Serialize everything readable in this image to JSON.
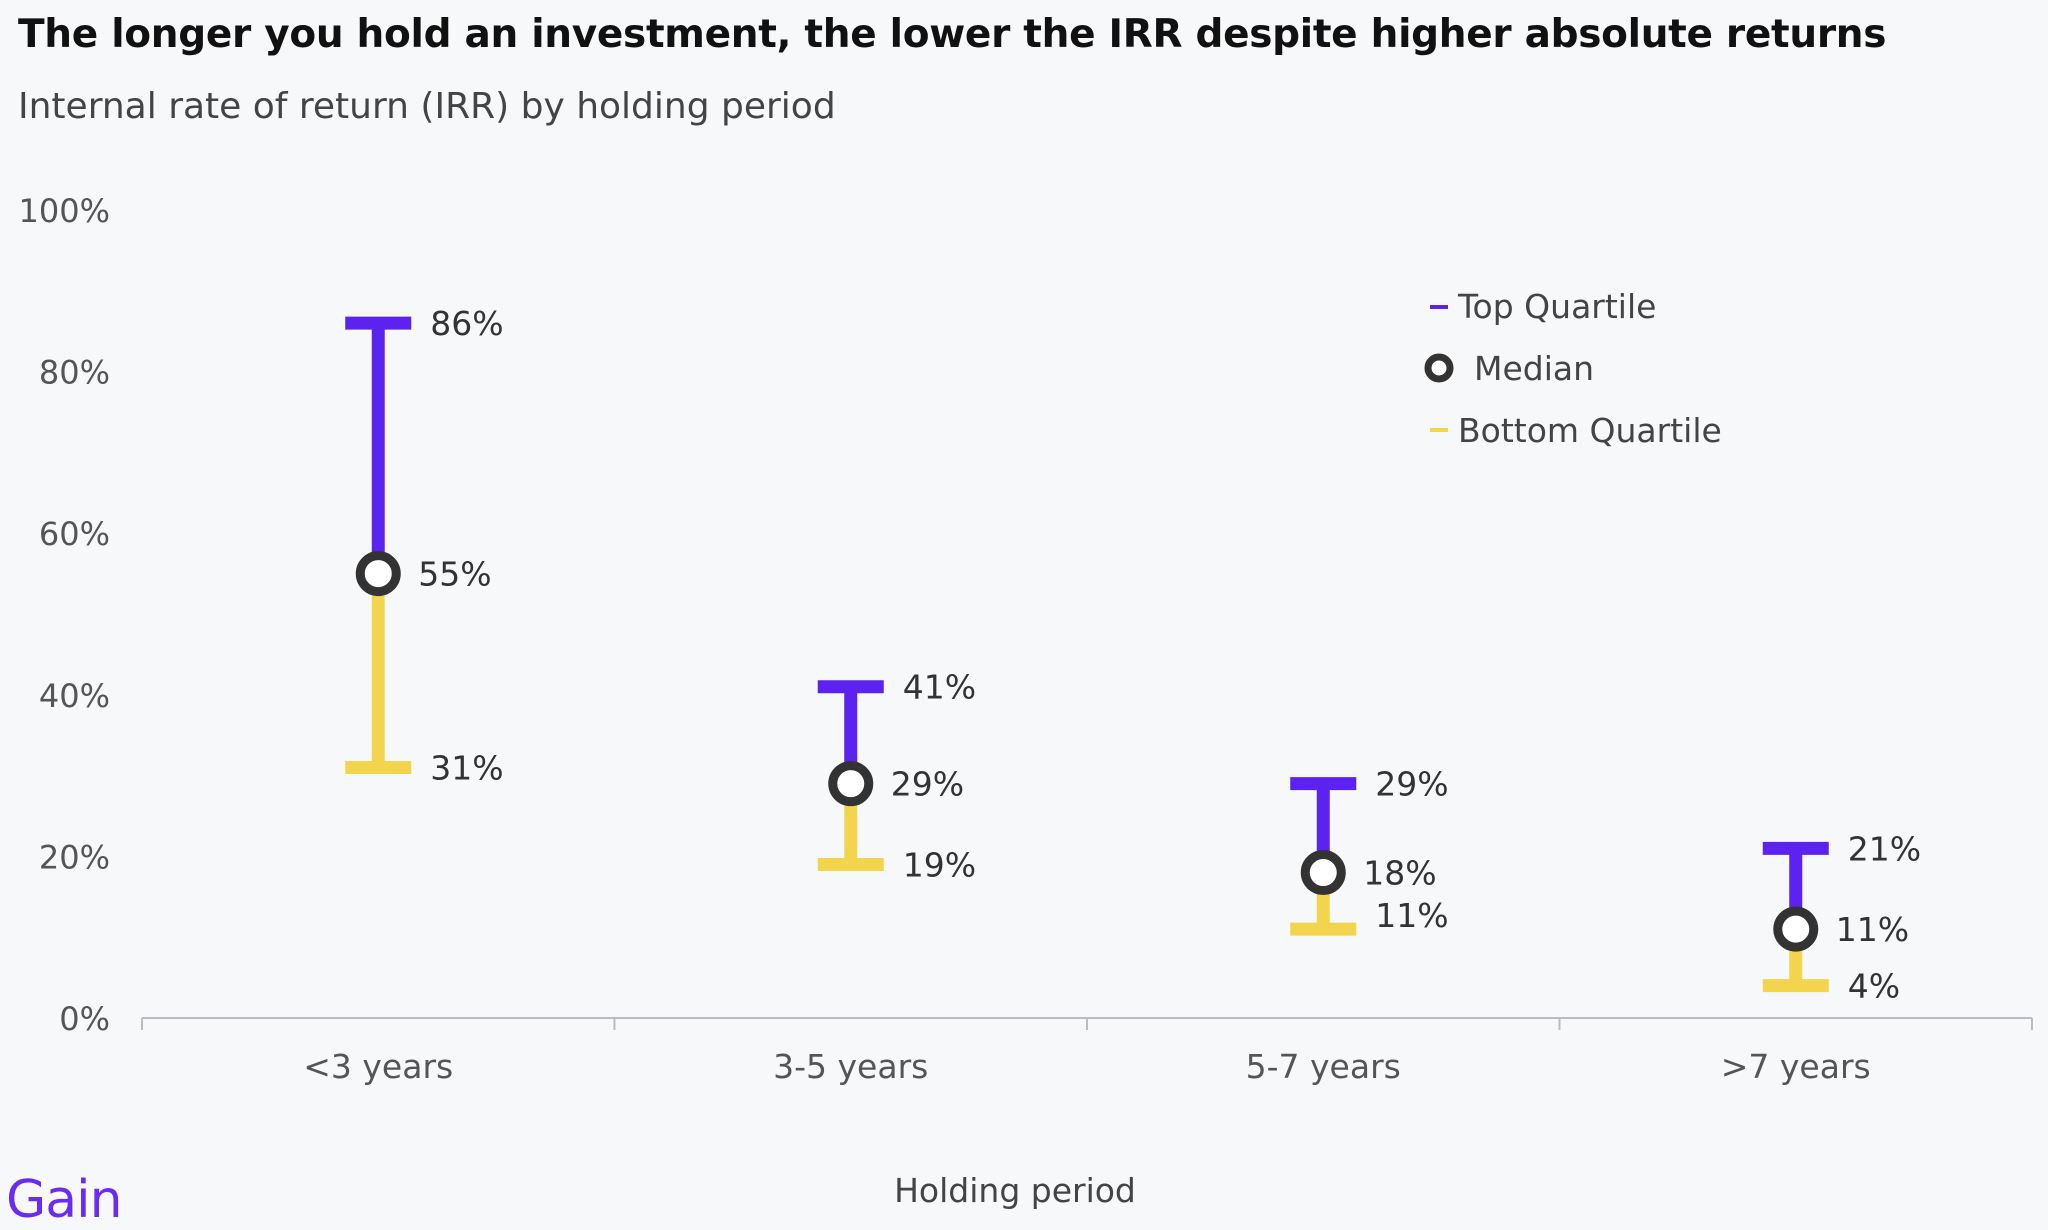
{
  "title": "The longer you hold an investment, the lower the IRR despite higher absolute returns",
  "subtitle": "Internal rate of return (IRR) by holding period",
  "brand": "Gain",
  "colors": {
    "top_quartile": "#5b22f0",
    "median": "#333333",
    "bottom_quartile": "#f2d54c",
    "axis": "#b9bcc4",
    "text": "#444444",
    "tick_text": "#555555",
    "brand": "#6a2cf0"
  },
  "chart_data": {
    "type": "range",
    "categories": [
      "<3 years",
      "3-5 years",
      "5-7 years",
      ">7 years"
    ],
    "series": [
      {
        "name": "Top Quartile",
        "values": [
          86,
          41,
          29,
          21
        ]
      },
      {
        "name": "Median",
        "values": [
          55,
          29,
          18,
          11
        ]
      },
      {
        "name": "Bottom Quartile",
        "values": [
          31,
          19,
          11,
          4
        ]
      }
    ],
    "data_labels": {
      "top": [
        "86%",
        "41%",
        "29%",
        "21%"
      ],
      "median": [
        "55%",
        "29%",
        "18%",
        "11%"
      ],
      "bottom": [
        "31%",
        "19%",
        "11%",
        "4%"
      ]
    },
    "yticks": [
      "0%",
      "20%",
      "40%",
      "60%",
      "80%",
      "100%"
    ],
    "ylim": [
      0,
      100
    ],
    "xlabel": "Holding period",
    "ylabel": "",
    "legend_position": "top-right",
    "grid": false
  }
}
